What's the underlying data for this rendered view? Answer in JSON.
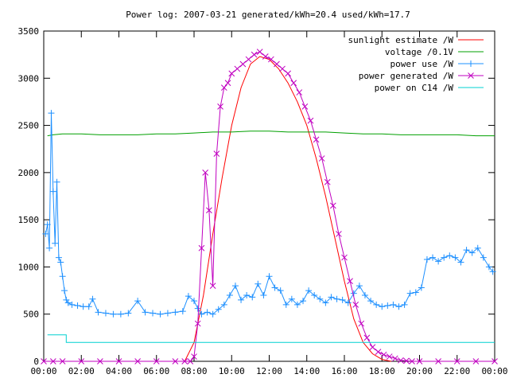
{
  "chart_data": {
    "type": "line",
    "title": "Power log: 2007-03-21 generated/kWh=20.4 used/kWh=17.7",
    "xlabel": "",
    "ylabel": "",
    "xlim": [
      0,
      24
    ],
    "ylim": [
      0,
      3500
    ],
    "x_ticks": [
      "00:00",
      "02:00",
      "04:00",
      "06:00",
      "08:00",
      "10:00",
      "12:00",
      "14:00",
      "16:00",
      "18:00",
      "20:00",
      "22:00",
      "00:00"
    ],
    "y_ticks": [
      0,
      500,
      1000,
      1500,
      2000,
      2500,
      3000,
      3500
    ],
    "grid": false,
    "legend_position": "top-right",
    "series": [
      {
        "name": "sunlight estimate /W",
        "color": "#ff0000",
        "marker": "none",
        "x": [
          7.5,
          8.0,
          8.5,
          9.0,
          9.5,
          10.0,
          10.5,
          11.0,
          11.5,
          12.0,
          12.5,
          13.0,
          13.5,
          14.0,
          14.5,
          15.0,
          15.5,
          16.0,
          16.5,
          17.0,
          17.5,
          18.0,
          18.5
        ],
        "y": [
          0,
          200,
          700,
          1350,
          1950,
          2500,
          2900,
          3150,
          3230,
          3200,
          3100,
          2950,
          2750,
          2500,
          2150,
          1750,
          1300,
          850,
          450,
          200,
          80,
          20,
          0
        ]
      },
      {
        "name": "voltage /0.1V",
        "color": "#00a000",
        "marker": "none",
        "x": [
          0.2,
          0.5,
          1.0,
          2.0,
          3.0,
          4.0,
          5.0,
          6.0,
          7.0,
          8.0,
          9.0,
          10.0,
          11.0,
          12.0,
          13.0,
          14.0,
          15.0,
          16.0,
          17.0,
          18.0,
          19.0,
          20.0,
          21.0,
          22.0,
          23.0,
          24.0
        ],
        "y": [
          2390,
          2400,
          2410,
          2410,
          2400,
          2400,
          2400,
          2410,
          2410,
          2420,
          2430,
          2430,
          2440,
          2440,
          2430,
          2430,
          2430,
          2420,
          2410,
          2410,
          2400,
          2400,
          2400,
          2400,
          2390,
          2390
        ]
      },
      {
        "name": "power use /W",
        "color": "#1e90ff",
        "marker": "plus",
        "x": [
          0.1,
          0.2,
          0.3,
          0.4,
          0.5,
          0.6,
          0.7,
          0.8,
          0.9,
          1.0,
          1.1,
          1.2,
          1.3,
          1.5,
          1.8,
          2.1,
          2.4,
          2.6,
          2.9,
          3.3,
          3.7,
          4.1,
          4.5,
          5.0,
          5.4,
          5.8,
          6.2,
          6.6,
          7.0,
          7.4,
          7.7,
          8.0,
          8.2,
          8.4,
          8.7,
          9.0,
          9.3,
          9.6,
          9.9,
          10.2,
          10.5,
          10.8,
          11.1,
          11.4,
          11.7,
          12.0,
          12.3,
          12.6,
          12.9,
          13.2,
          13.5,
          13.8,
          14.1,
          14.4,
          14.7,
          15.0,
          15.3,
          15.6,
          15.9,
          16.2,
          16.5,
          16.8,
          17.1,
          17.4,
          17.7,
          18.0,
          18.3,
          18.6,
          18.9,
          19.2,
          19.5,
          19.8,
          20.1,
          20.4,
          20.7,
          21.0,
          21.3,
          21.6,
          21.9,
          22.2,
          22.5,
          22.8,
          23.1,
          23.4,
          23.7,
          23.9
        ],
        "y": [
          1350,
          1450,
          1200,
          2630,
          1800,
          1250,
          1900,
          1100,
          1050,
          900,
          750,
          650,
          620,
          600,
          590,
          580,
          580,
          660,
          520,
          510,
          500,
          500,
          510,
          640,
          520,
          510,
          500,
          510,
          520,
          530,
          690,
          640,
          560,
          500,
          520,
          500,
          550,
          600,
          700,
          800,
          650,
          700,
          680,
          820,
          700,
          900,
          780,
          750,
          600,
          660,
          600,
          640,
          750,
          700,
          660,
          620,
          680,
          660,
          650,
          620,
          720,
          800,
          700,
          640,
          600,
          580,
          590,
          600,
          580,
          600,
          720,
          730,
          780,
          1080,
          1100,
          1060,
          1100,
          1120,
          1100,
          1050,
          1180,
          1150,
          1200,
          1100,
          1000,
          950
        ]
      },
      {
        "name": "power generated /W",
        "color": "#c000c0",
        "marker": "cross",
        "x": [
          0,
          0.5,
          1,
          2,
          3,
          4,
          5,
          6,
          7,
          7.5,
          7.8,
          8.0,
          8.2,
          8.4,
          8.6,
          8.8,
          9.0,
          9.2,
          9.4,
          9.6,
          9.8,
          10.0,
          10.3,
          10.6,
          10.9,
          11.2,
          11.5,
          11.8,
          12.1,
          12.4,
          12.7,
          13.0,
          13.3,
          13.6,
          13.9,
          14.2,
          14.5,
          14.8,
          15.1,
          15.4,
          15.7,
          16.0,
          16.3,
          16.6,
          16.9,
          17.2,
          17.5,
          17.8,
          18.1,
          18.4,
          18.7,
          19.0,
          19.3,
          19.6,
          20.0,
          21,
          22,
          23,
          24
        ],
        "y": [
          0,
          0,
          0,
          0,
          0,
          0,
          0,
          0,
          0,
          0,
          0,
          50,
          400,
          1200,
          2000,
          1600,
          800,
          2200,
          2700,
          2900,
          2950,
          3050,
          3100,
          3150,
          3200,
          3250,
          3280,
          3230,
          3200,
          3150,
          3100,
          3050,
          2950,
          2850,
          2700,
          2550,
          2350,
          2150,
          1900,
          1650,
          1350,
          1100,
          850,
          600,
          400,
          250,
          150,
          100,
          70,
          50,
          30,
          10,
          5,
          0,
          0,
          0,
          0,
          0,
          0
        ]
      },
      {
        "name": "power on C14 /W",
        "color": "#00d0d0",
        "marker": "none",
        "x": [
          0.2,
          1.2,
          1.2,
          24.0
        ],
        "y": [
          280,
          280,
          200,
          200
        ]
      }
    ]
  }
}
